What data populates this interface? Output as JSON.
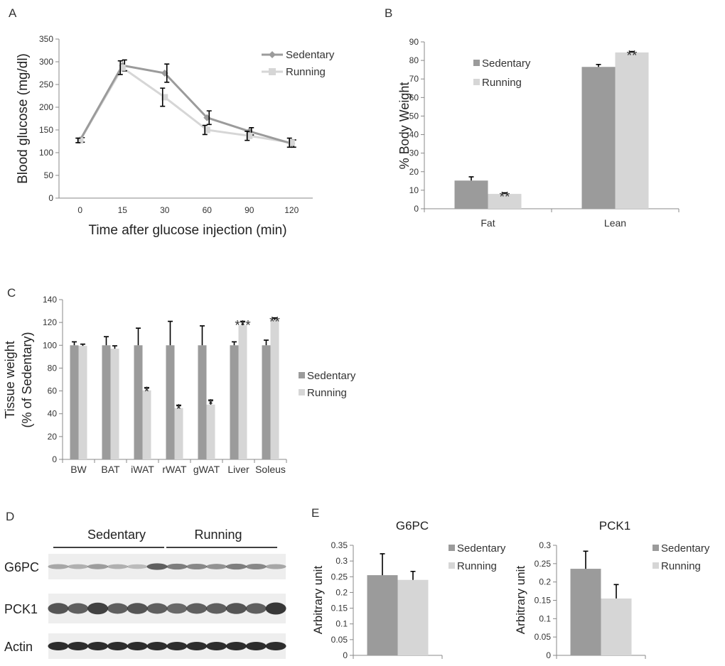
{
  "colors": {
    "sedentary": "#9b9b9b",
    "running": "#d6d6d6",
    "blot_bg": "#eeeeee",
    "blot_band": "#222222"
  },
  "chart_data": [
    {
      "panel": "A",
      "type": "line",
      "xlabel": "Time after glucose injection (min)",
      "ylabel": "Blood glucose (mg/dl)",
      "categories": [
        "0",
        "15",
        "30",
        "60",
        "90",
        "120"
      ],
      "ylim": [
        0,
        350
      ],
      "yticks": [
        "0",
        "50",
        "100",
        "150",
        "200",
        "250",
        "300",
        "350"
      ],
      "legend_position": "top-right",
      "series": [
        {
          "name": "Sedentary",
          "values": [
            128,
            292,
            275,
            177,
            147,
            120
          ],
          "errors": [
            5,
            12,
            20,
            15,
            8,
            8
          ]
        },
        {
          "name": "Running",
          "values": [
            127,
            287,
            222,
            150,
            137,
            122
          ],
          "errors": [
            5,
            15,
            20,
            10,
            10,
            10
          ]
        }
      ]
    },
    {
      "panel": "B",
      "type": "bar",
      "ylabel": "% Body Weight",
      "categories": [
        "Fat",
        "Lean"
      ],
      "ylim": [
        0,
        90
      ],
      "yticks": [
        "0",
        "10",
        "20",
        "30",
        "40",
        "50",
        "60",
        "70",
        "80",
        "90"
      ],
      "legend_position": "top-left",
      "series": [
        {
          "name": "Sedentary",
          "values": [
            15.2,
            76.5
          ],
          "errors": [
            2.0,
            1.3
          ]
        },
        {
          "name": "Running",
          "values": [
            8.0,
            84.3
          ],
          "errors": [
            0.6,
            0.5
          ]
        }
      ],
      "annotations": [
        "**",
        "**"
      ]
    },
    {
      "panel": "C",
      "type": "bar",
      "ylabel": "Tissue weight (% of Sedentary)",
      "ylabel_lines": [
        "Tissue weight",
        "(% of Sedentary)"
      ],
      "categories": [
        "BW",
        "BAT",
        "iWAT",
        "rWAT",
        "gWAT",
        "Liver",
        "Soleus"
      ],
      "ylim": [
        0,
        140
      ],
      "yticks": [
        "0",
        "20",
        "40",
        "60",
        "80",
        "100",
        "120",
        "140"
      ],
      "legend_position": "right",
      "series": [
        {
          "name": "Sedentary",
          "values": [
            100,
            100,
            100,
            100,
            100,
            100,
            100
          ],
          "errors": [
            3,
            7.5,
            15,
            21,
            17,
            3,
            4.5
          ]
        },
        {
          "name": "Running",
          "values": [
            99.5,
            97,
            60.5,
            45,
            48,
            117.5,
            122
          ],
          "errors": [
            1.5,
            2.5,
            2.5,
            2.5,
            4,
            3.5,
            2
          ]
        }
      ],
      "annotations": [
        "",
        "",
        "*",
        "*",
        "*",
        "***",
        "**"
      ]
    },
    {
      "panel": "E",
      "type": "bar",
      "title": "G6PC",
      "ylabel": "Arbitrary unit",
      "categories": [
        ""
      ],
      "ylim": [
        0,
        0.35
      ],
      "yticks": [
        "0",
        "0.05",
        "0.1",
        "0.15",
        "0.2",
        "0.25",
        "0.3",
        "0.35"
      ],
      "legend_position": "top-right",
      "series": [
        {
          "name": "Sedentary",
          "values": [
            0.255
          ],
          "errors": [
            0.068
          ]
        },
        {
          "name": "Running",
          "values": [
            0.24
          ],
          "errors": [
            0.027
          ]
        }
      ]
    },
    {
      "panel": "E",
      "type": "bar",
      "title": "PCK1",
      "ylabel": "Arbitrary unit",
      "categories": [
        ""
      ],
      "ylim": [
        0,
        0.3
      ],
      "yticks": [
        "0",
        "0.05",
        "0.1",
        "0.15",
        "0.2",
        "0.25",
        "0.3"
      ],
      "legend_position": "top-right",
      "series": [
        {
          "name": "Sedentary",
          "values": [
            0.236
          ],
          "errors": [
            0.048
          ]
        },
        {
          "name": "Running",
          "values": [
            0.155
          ],
          "errors": [
            0.038
          ]
        }
      ]
    }
  ],
  "blot": {
    "panel": "D",
    "groups": [
      "Sedentary",
      "Running"
    ],
    "rows": [
      {
        "label": "G6PC",
        "intensities": [
          0.35,
          0.3,
          0.4,
          0.3,
          0.25,
          0.7,
          0.55,
          0.5,
          0.45,
          0.55,
          0.5,
          0.35
        ]
      },
      {
        "label": "PCK1",
        "intensities": [
          0.75,
          0.7,
          0.85,
          0.7,
          0.75,
          0.7,
          0.65,
          0.7,
          0.7,
          0.75,
          0.7,
          0.9
        ]
      },
      {
        "label": "Actin",
        "intensities": [
          0.95,
          0.95,
          0.95,
          0.95,
          0.95,
          0.95,
          0.95,
          0.95,
          0.95,
          0.95,
          0.95,
          0.95
        ]
      }
    ]
  }
}
